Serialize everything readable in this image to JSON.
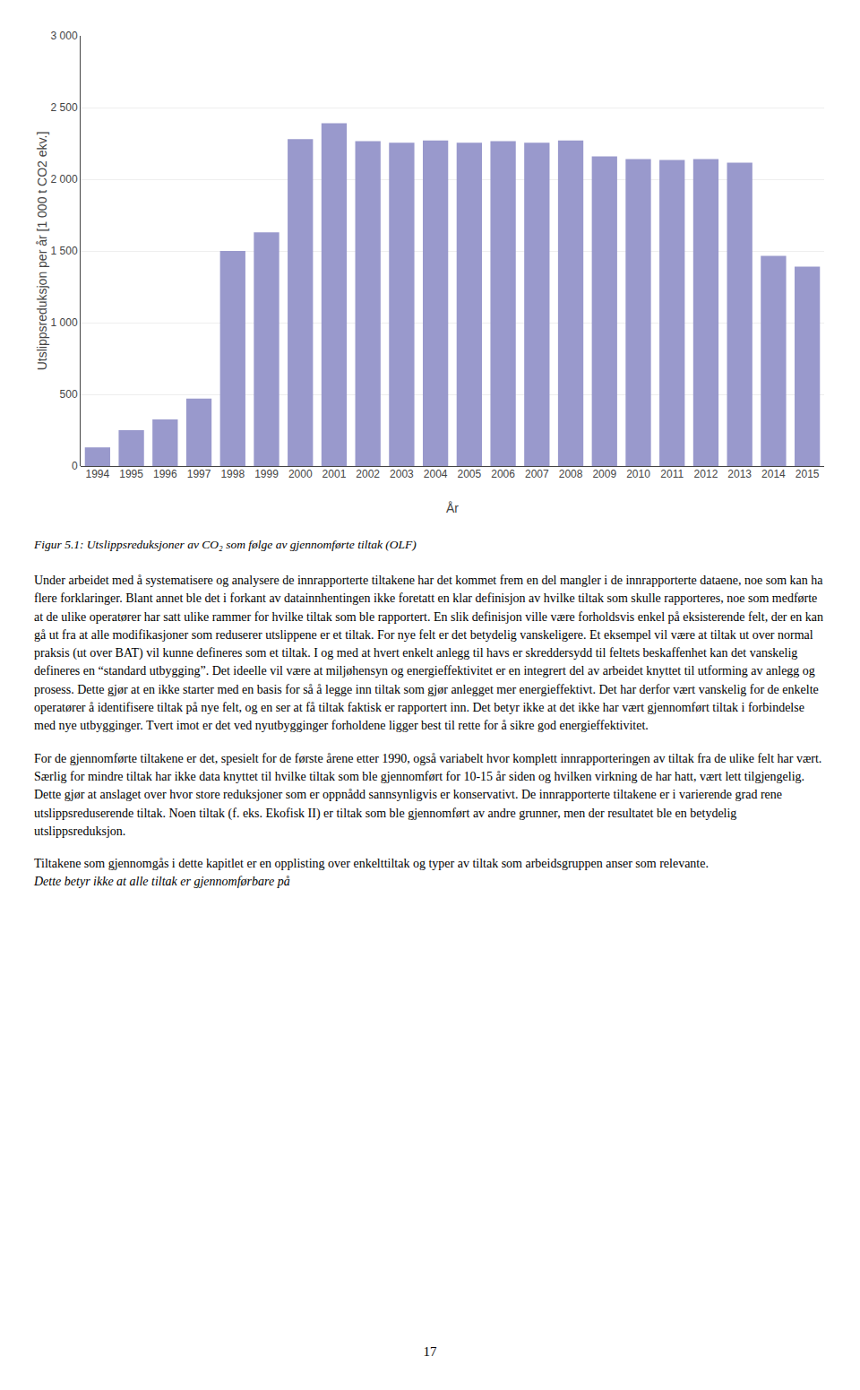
{
  "chart_data": {
    "type": "bar",
    "categories": [
      "1994",
      "1995",
      "1996",
      "1997",
      "1998",
      "1999",
      "2000",
      "2001",
      "2002",
      "2003",
      "2004",
      "2005",
      "2006",
      "2007",
      "2008",
      "2009",
      "2010",
      "2011",
      "2012",
      "2013",
      "2014",
      "2015"
    ],
    "values": [
      130,
      250,
      325,
      470,
      1500,
      1630,
      2280,
      2390,
      2265,
      2255,
      2270,
      2255,
      2265,
      2255,
      2270,
      2160,
      2140,
      2135,
      2140,
      2115,
      1465,
      1390
    ],
    "color": "#9999cc",
    "xlabel": "År",
    "ylabel": "Utslippsreduksjon per år [1 000 t CO2 ekv.]",
    "ylim": [
      0,
      3000
    ],
    "yticks": [
      0,
      500,
      {
        "value": 1000,
        "label": "1 000"
      },
      {
        "value": 1500,
        "label": "1 500"
      },
      {
        "value": 2000,
        "label": "2 000"
      },
      {
        "value": 2500,
        "label": "2 500"
      },
      {
        "value": 3000,
        "label": "3 000"
      }
    ],
    "grid": true,
    "annotations": [
      "Figur 5.1: Utslippsreduksjoner av CO₂ som følge av gjennomførte tiltak (OLF)",
      "Under arbeidet med å systematisere og analysere de innrapporterte tiltakene har det kommet frem en del mangler i de innrapporterte dataene, noe som kan ha flere forklaringer. Blant annet ble det i forkant av datainnhentingen ikke foretatt en klar definisjon av hvilke tiltak som skulle rapporteres, noe som medførte at de ulike operatører har satt ulike rammer for hvilke tiltak som ble rapportert. En slik definisjon ville være forholdsvis enkel på eksisterende felt, der en kan gå ut fra at alle modifikasjoner som reduserer utslippene er et tiltak. For nye felt er det betydelig vanskeligere. Et eksempel vil være at tiltak ut over normal praksis (ut over BAT) vil kunne defineres som et tiltak. I og med at hvert enkelt anlegg til havs er skreddersydd til feltets beskaffenhet kan det vanskelig defineres en “standard utbygging”. Det ideelle vil være at miljøhensyn og energieffektivitet er en integrert del av arbeidet knyttet til ut­forming av anlegg og prosess. Dette gjør at en ikke starter med en basis for så å legge inn tiltak som gjør anlegget mer energieffektivt. Det har derfor vært vanskelig for de enkelte operatører å identifisere tiltak på nye felt, og en ser at få tiltak faktisk er rapportert inn. Det betyr ikke at det ikke har vært gjennomført tiltak i forbindelse med nye utbygginger. Tvert imot er det ved nyutbygginger forholdene ligger best til rette for å sikre god energieffektivitet.",
      "For de gjennomførte tiltakene er det, spesielt for de første årene etter 1990, også variabelt hvor komplett innrapporteringen av tiltak fra de ulike felt har vært. Særlig for mindre tiltak har ikke data knyttet til hvilke tiltak som ble gjennomført for 10-15 år siden og hvilken virkning de har hatt, vært lett tilgjengelig. Dette gjør at anslaget over hvor store reduksjoner som er oppnådd sannsynligvis er konservativt. De innrapporterte tiltakene er i varierende grad rene utslippsreduserende tiltak. Noen tiltak (f. eks. Ekofisk II) er tiltak som ble gjennomført av andre grunner, men der resultatet ble en betydelig utslippsreduksjon.",
      "Tiltakene som gjennomgås i dette kapitlet er en opplisting over enkelttiltak og typer av tiltak som arbeidsgruppen anser som relevante.",
      "Dette betyr ikke at alle tiltak er gjennomførbare på",
      "17"
    ]
  }
}
